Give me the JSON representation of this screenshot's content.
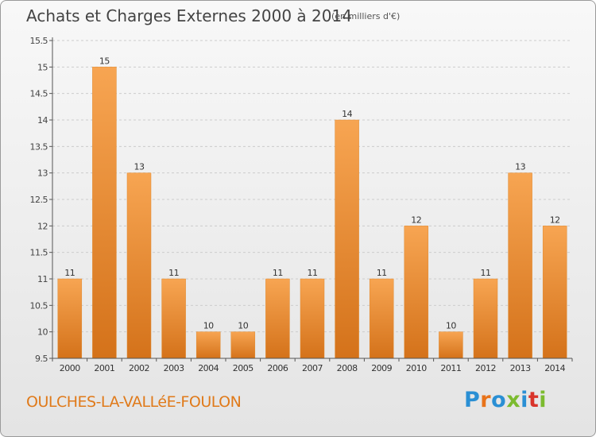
{
  "header": {
    "title": "Achats et Charges Externes 2000 à 2014",
    "subtitle": "(en milliers d'€)"
  },
  "footer": {
    "commune": "OULCHES-LA-VALLéE-FOULON",
    "brand": "Proxiti",
    "brand_colors": [
      "#2a8fd4",
      "#e8731a",
      "#2a8fd4",
      "#7cbb2f",
      "#2a8fd4",
      "#d9342b",
      "#7cbb2f"
    ]
  },
  "colors": {
    "bar_top": "#f7a552",
    "bar_bottom": "#d4721a",
    "axis": "#555555",
    "grid": "#cccccc"
  },
  "chart_data": {
    "type": "bar",
    "title": "Achats et Charges Externes 2000 à 2014",
    "subtitle": "(en milliers d'€)",
    "categories": [
      "2000",
      "2001",
      "2002",
      "2003",
      "2004",
      "2005",
      "2006",
      "2007",
      "2008",
      "2009",
      "2010",
      "2011",
      "2012",
      "2013",
      "2014"
    ],
    "values": [
      11,
      15,
      13,
      11,
      10,
      10,
      11,
      11,
      14,
      11,
      12,
      10,
      11,
      13,
      12
    ],
    "data_labels": [
      "11",
      "15",
      "13",
      "11",
      "10",
      "10",
      "11",
      "11",
      "14",
      "11",
      "12",
      "10",
      "11",
      "13",
      "12"
    ],
    "ylim": [
      9.5,
      15.5
    ],
    "yticks": [
      9.5,
      10,
      10.5,
      11,
      11.5,
      12,
      12.5,
      13,
      13.5,
      14,
      14.5,
      15,
      15.5
    ],
    "ytick_labels": [
      "9.5",
      "10",
      "10.5",
      "11",
      "11.5",
      "12",
      "12.5",
      "13",
      "13.5",
      "14",
      "14.5",
      "15",
      "15.5"
    ],
    "grid": true
  }
}
